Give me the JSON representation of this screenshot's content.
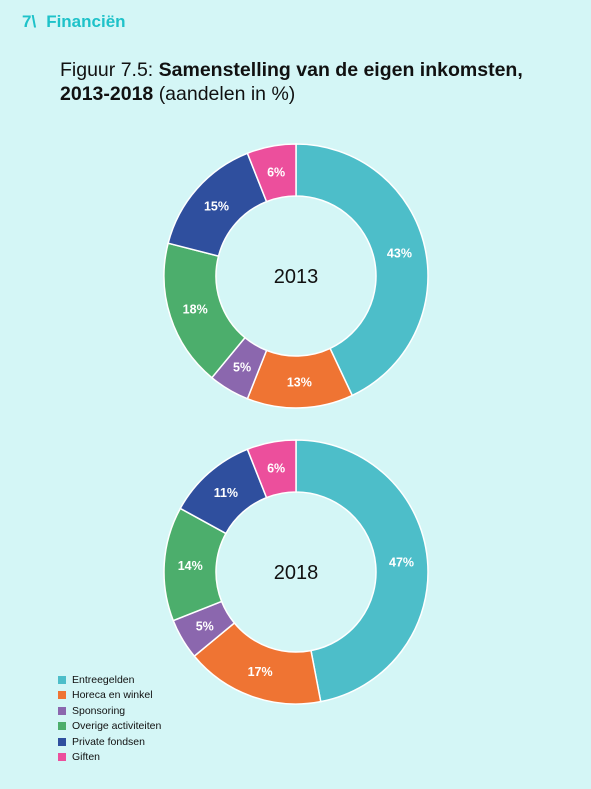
{
  "header": {
    "section_number": "7\\",
    "section_title": "Financiën"
  },
  "figure": {
    "label": "Figuur 7.5:",
    "title_bold": "Samenstelling van de eigen inkomsten, 2013-2018",
    "title_rest": "(aandelen in %)"
  },
  "colors": {
    "Entreegelden": "#4dbec9",
    "Horeca en winkel": "#ef7433",
    "Sponsoring": "#8b67ae",
    "Overige activiteiten": "#4cae6c",
    "Private fondsen": "#2f4f9e",
    "Giften": "#ec4f9c"
  },
  "chart_data": [
    {
      "type": "pie",
      "center_label": "2013",
      "categories": [
        "Entreegelden",
        "Horeca en winkel",
        "Sponsoring",
        "Overige activiteiten",
        "Private fondsen",
        "Giften"
      ],
      "values": [
        43,
        13,
        5,
        18,
        15,
        6
      ],
      "labels": [
        "43%",
        "13%",
        "5%",
        "18%",
        "15%",
        "6%"
      ]
    },
    {
      "type": "pie",
      "center_label": "2018",
      "categories": [
        "Entreegelden",
        "Horeca en winkel",
        "Sponsoring",
        "Overige activiteiten",
        "Private fondsen",
        "Giften"
      ],
      "values": [
        47,
        17,
        5,
        14,
        11,
        6
      ],
      "labels": [
        "47%",
        "17%",
        "5%",
        "14%",
        "11%",
        "6%"
      ]
    }
  ],
  "legend": [
    "Entreegelden",
    "Horeca en winkel",
    "Sponsoring",
    "Overige activiteiten",
    "Private fondsen",
    "Giften"
  ]
}
